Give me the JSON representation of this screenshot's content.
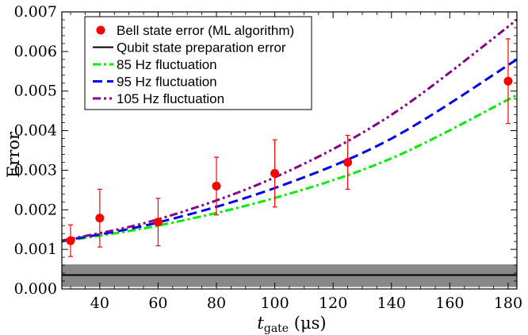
{
  "chart_data": {
    "type": "line",
    "xlabel": {
      "main": "t",
      "sub": "gate",
      "unit": " (μs)"
    },
    "ylabel": "Error",
    "xlim": [
      27,
      183
    ],
    "ylim": [
      0,
      0.007
    ],
    "xticks": [
      40,
      60,
      80,
      100,
      120,
      140,
      160,
      180
    ],
    "yticks": [
      "0.000",
      "0.001",
      "0.002",
      "0.003",
      "0.004",
      "0.005",
      "0.006",
      "0.007"
    ],
    "legend_position": "top-left",
    "legend": [
      {
        "label": "Bell state error (ML algorithm)",
        "style": "marker",
        "color": "#ff0000"
      },
      {
        "label": "Qubit state preparation error",
        "style": "solid",
        "color": "#000000"
      },
      {
        "label": "85 Hz fluctuation",
        "style": "dashdot",
        "color": "#00ee00"
      },
      {
        "label": "95 Hz fluctuation",
        "style": "dashed",
        "color": "#0000ee"
      },
      {
        "label": "105 Hz fluctuation",
        "style": "dashdotdot",
        "color": "#880088"
      }
    ],
    "points": {
      "name": "Bell state error (ML algorithm)",
      "x": [
        30,
        40,
        60,
        80,
        100,
        125,
        180
      ],
      "y": [
        0.00122,
        0.00179,
        0.00169,
        0.0026,
        0.00292,
        0.0032,
        0.00525
      ],
      "err_low": [
        0.0004,
        0.00073,
        0.0006,
        0.00073,
        0.00085,
        0.00068,
        0.00107
      ],
      "err_high": [
        0.0004,
        0.00073,
        0.0006,
        0.00073,
        0.00085,
        0.00068,
        0.00107
      ],
      "color": "#ff0000"
    },
    "baseline": {
      "name": "Qubit state preparation error",
      "y": 0.00035,
      "band": [
        5e-05,
        0.00062
      ],
      "color": "#000000",
      "band_color": "#888888"
    },
    "curves": [
      {
        "name": "85 Hz fluctuation",
        "x": [
          27,
          60,
          100,
          140,
          183
        ],
        "y": [
          0.0012,
          0.0016,
          0.0023,
          0.0033,
          0.0049
        ],
        "color": "#00ee00",
        "dash": "dashdot"
      },
      {
        "name": "95 Hz fluctuation",
        "x": [
          27,
          60,
          100,
          140,
          183
        ],
        "y": [
          0.00121,
          0.00168,
          0.00255,
          0.0038,
          0.0058
        ],
        "color": "#0000ee",
        "dash": "dashed"
      },
      {
        "name": "105 Hz fluctuation",
        "x": [
          27,
          60,
          100,
          140,
          183
        ],
        "y": [
          0.00122,
          0.00176,
          0.00282,
          0.0044,
          0.0068
        ],
        "color": "#880088",
        "dash": "dashdotdot"
      }
    ]
  }
}
